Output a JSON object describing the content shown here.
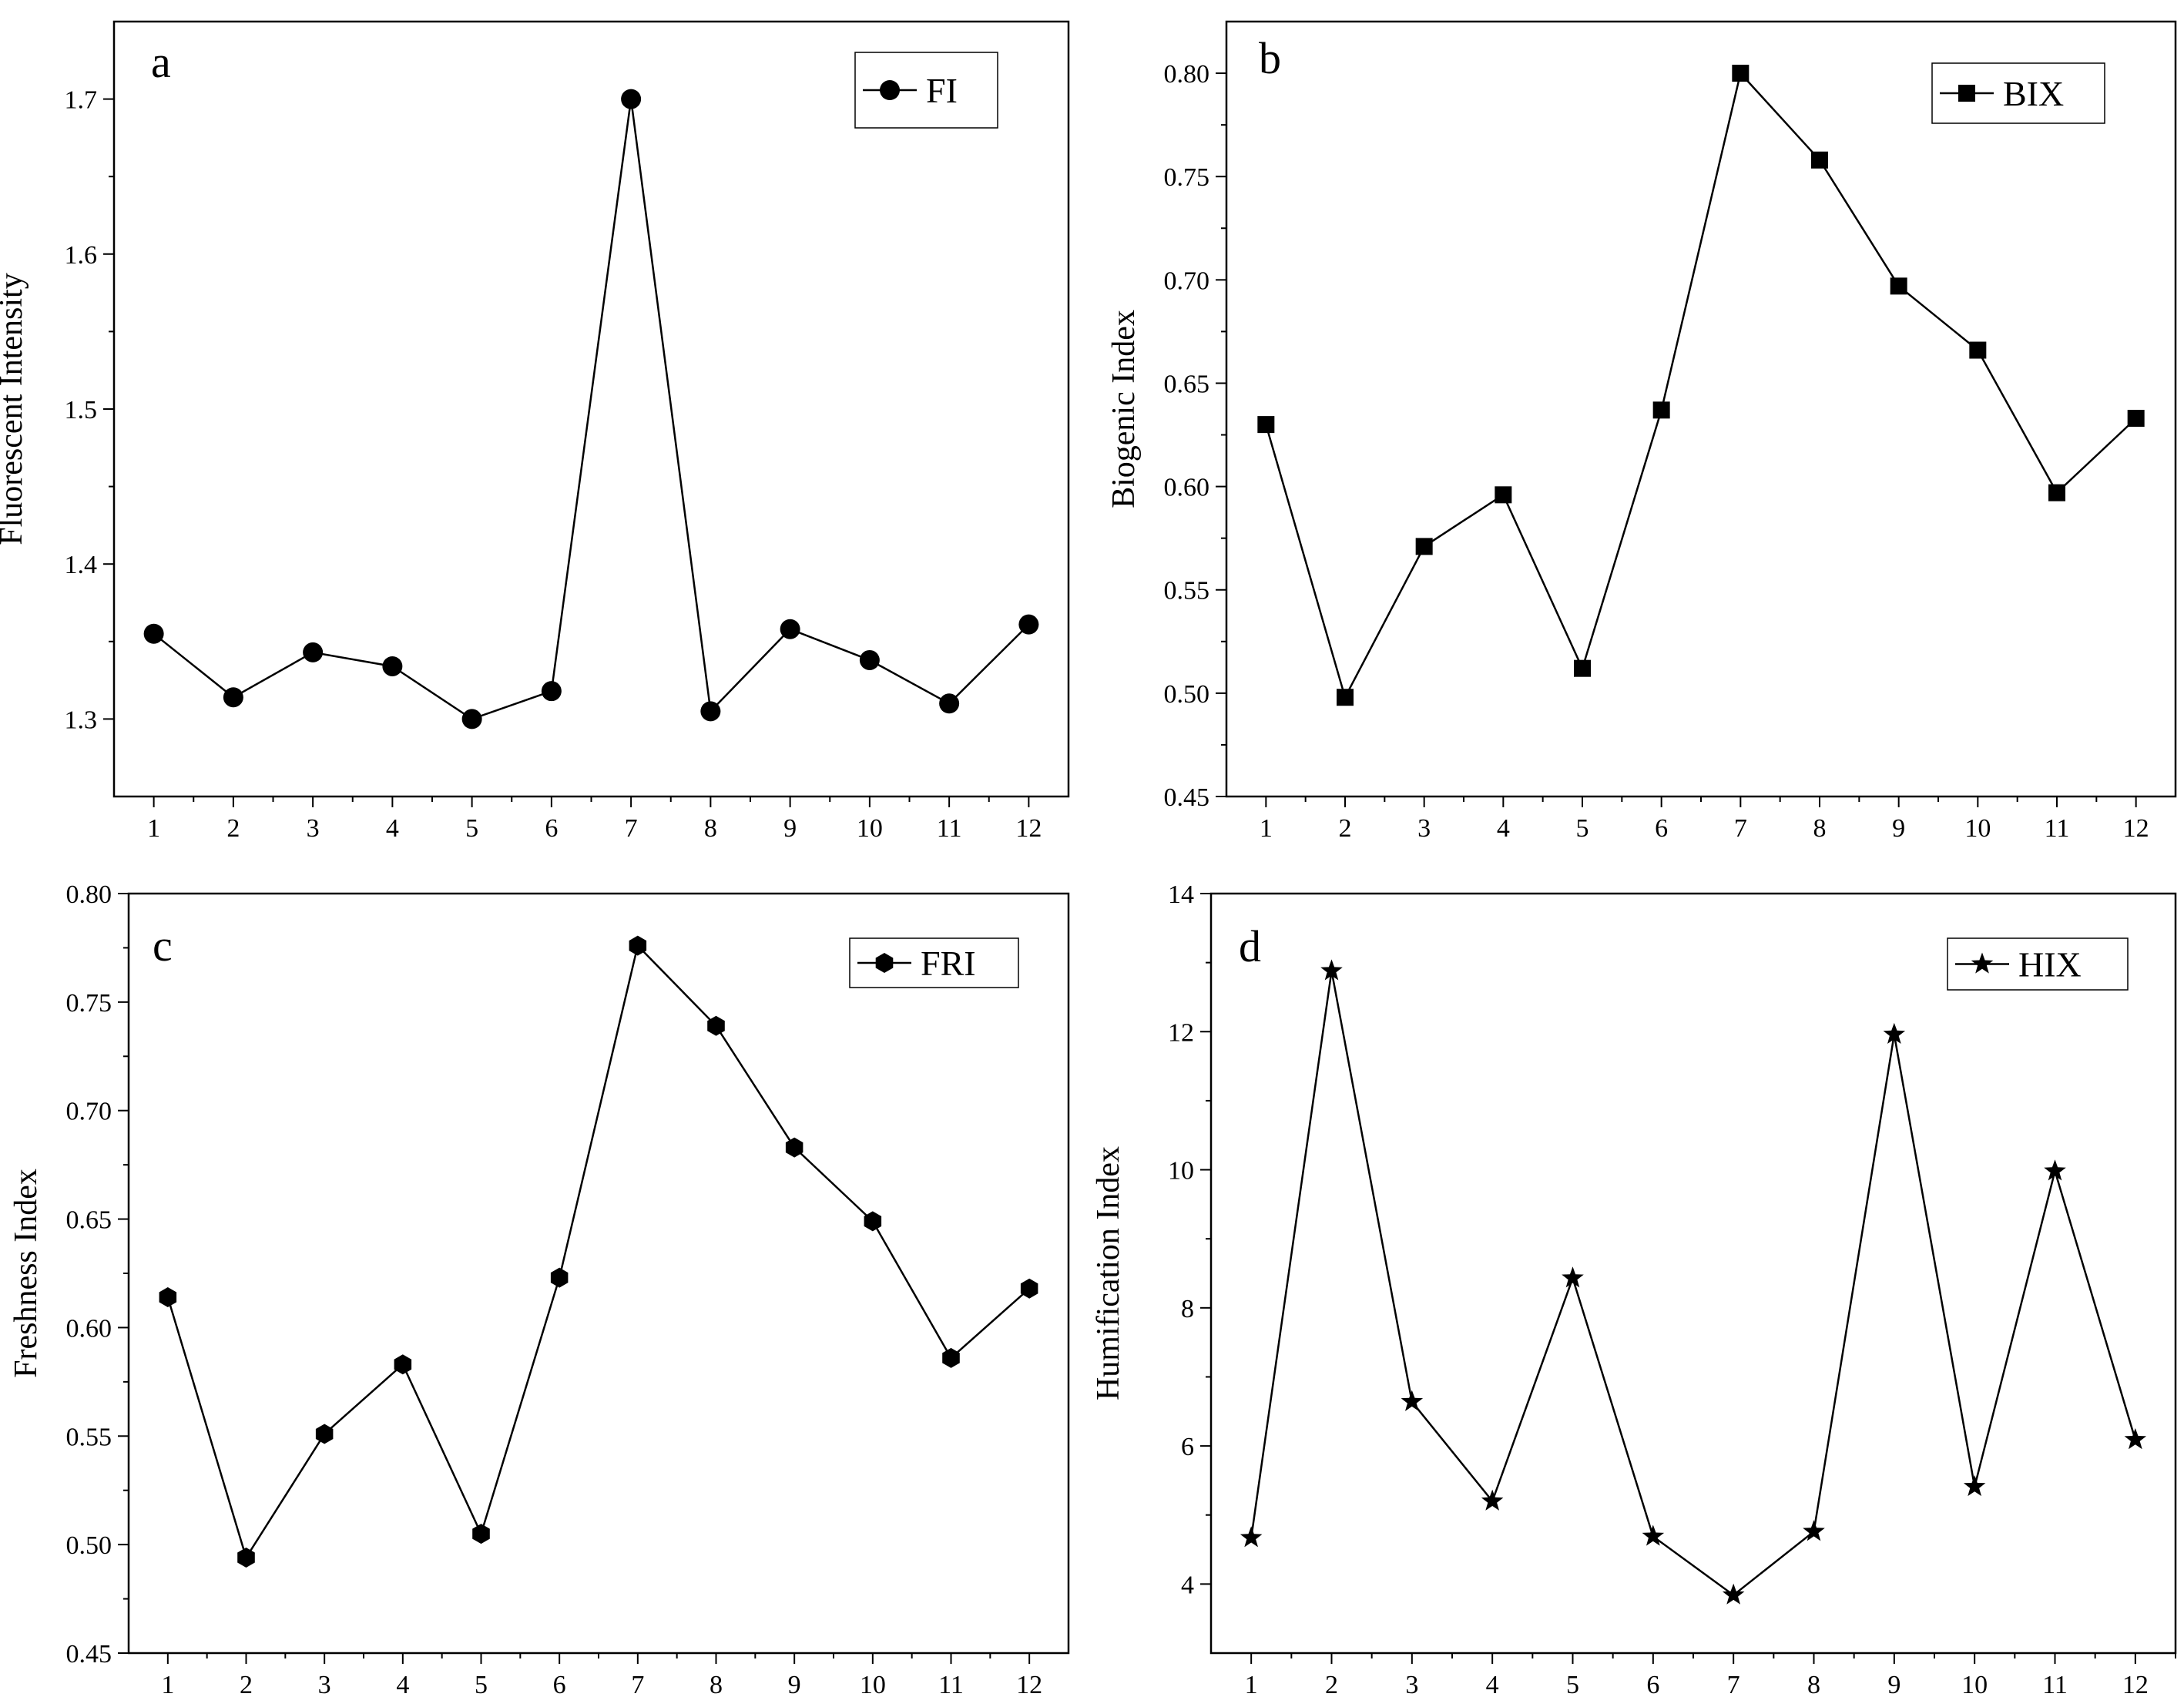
{
  "chart_data": [
    {
      "type": "line",
      "panel_label": "a",
      "ylabel": "Fluorescent Intensity",
      "xlabel": "",
      "categories": [
        "1",
        "2",
        "3",
        "4",
        "5",
        "6",
        "7",
        "8",
        "9",
        "10",
        "11",
        "12"
      ],
      "series": [
        {
          "name": "FI",
          "marker": "circle",
          "values": [
            1.355,
            1.314,
            1.343,
            1.334,
            1.3,
            1.318,
            1.7,
            1.305,
            1.358,
            1.338,
            1.31,
            1.361
          ]
        }
      ],
      "ylim": [
        1.25,
        1.75
      ],
      "yticks": [
        1.3,
        1.4,
        1.5,
        1.6,
        1.7
      ],
      "ytick_labels": [
        "1.3",
        "1.4",
        "1.5",
        "1.6",
        "1.7"
      ],
      "legend_position": "top-right"
    },
    {
      "type": "line",
      "panel_label": "b",
      "ylabel": "Biogenic Index",
      "xlabel": "",
      "categories": [
        "1",
        "2",
        "3",
        "4",
        "5",
        "6",
        "7",
        "8",
        "9",
        "10",
        "11",
        "12"
      ],
      "series": [
        {
          "name": "BIX",
          "marker": "square",
          "values": [
            0.63,
            0.498,
            0.571,
            0.596,
            0.512,
            0.637,
            0.8,
            0.758,
            0.697,
            0.666,
            0.597,
            0.633
          ]
        }
      ],
      "ylim": [
        0.45,
        0.825
      ],
      "yticks": [
        0.45,
        0.5,
        0.55,
        0.6,
        0.65,
        0.7,
        0.75,
        0.8
      ],
      "ytick_labels": [
        "0.45",
        "0.50",
        "0.55",
        "0.60",
        "0.65",
        "0.70",
        "0.75",
        "0.80"
      ],
      "legend_position": "top-right"
    },
    {
      "type": "line",
      "panel_label": "c",
      "ylabel": "Freshness Index",
      "xlabel": "",
      "categories": [
        "1",
        "2",
        "3",
        "4",
        "5",
        "6",
        "7",
        "8",
        "9",
        "10",
        "11",
        "12"
      ],
      "series": [
        {
          "name": "FRI",
          "marker": "hexagon",
          "values": [
            0.614,
            0.494,
            0.551,
            0.583,
            0.505,
            0.623,
            0.776,
            0.739,
            0.683,
            0.649,
            0.586,
            0.618
          ]
        }
      ],
      "ylim": [
        0.45,
        0.8
      ],
      "yticks": [
        0.45,
        0.5,
        0.55,
        0.6,
        0.65,
        0.7,
        0.75,
        0.8
      ],
      "ytick_labels": [
        "0.45",
        "0.50",
        "0.55",
        "0.60",
        "0.65",
        "0.70",
        "0.75",
        "0.80"
      ],
      "legend_position": "top-right"
    },
    {
      "type": "line",
      "panel_label": "d",
      "ylabel": "Humification Index",
      "xlabel": "",
      "categories": [
        "1",
        "2",
        "3",
        "4",
        "5",
        "6",
        "7",
        "8",
        "9",
        "10",
        "11",
        "12"
      ],
      "series": [
        {
          "name": "HIX",
          "marker": "star",
          "values": [
            4.67,
            12.88,
            6.64,
            5.2,
            8.43,
            4.69,
            3.84,
            4.76,
            11.96,
            5.41,
            9.98,
            6.09
          ]
        }
      ],
      "ylim": [
        3.0,
        14.0
      ],
      "yticks": [
        4,
        6,
        8,
        10,
        12,
        14
      ],
      "ytick_labels": [
        "4",
        "6",
        "8",
        "10",
        "12",
        "14"
      ],
      "legend_position": "top-right"
    }
  ]
}
